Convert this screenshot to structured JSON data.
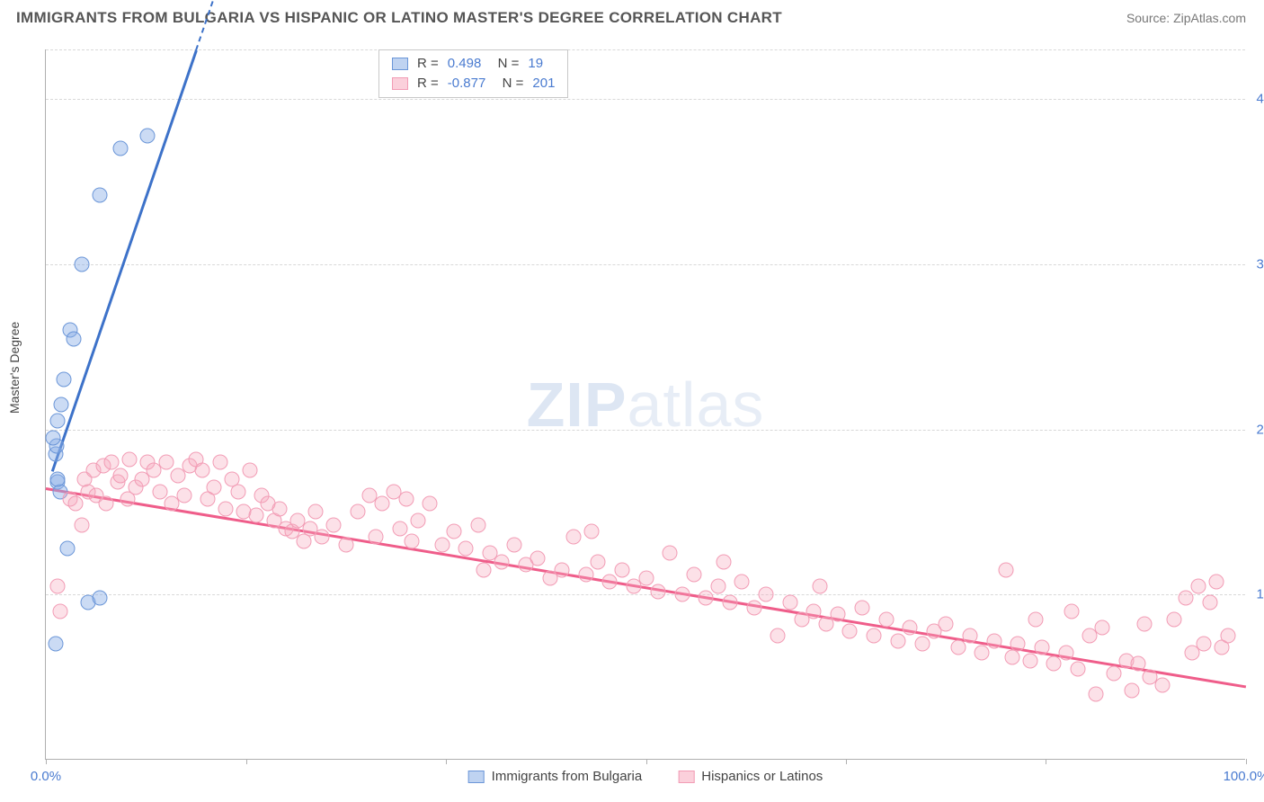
{
  "title": "IMMIGRANTS FROM BULGARIA VS HISPANIC OR LATINO MASTER'S DEGREE CORRELATION CHART",
  "source": "Source: ZipAtlas.com",
  "ylabel": "Master's Degree",
  "watermark_bold": "ZIP",
  "watermark_light": "atlas",
  "chart": {
    "type": "scatter",
    "xlim": [
      0,
      100
    ],
    "ylim": [
      0,
      43
    ],
    "xtick_labels": {
      "0": "0.0%",
      "100": "100.0%"
    },
    "xtick_positions": [
      0,
      16.67,
      33.33,
      50,
      66.67,
      83.33,
      100
    ],
    "ytick_labels": {
      "10": "10.0%",
      "20": "20.0%",
      "30": "30.0%",
      "40": "40.0%"
    },
    "grid_y": [
      10,
      20,
      30,
      40,
      43
    ],
    "grid_color": "#d8d8d8",
    "background_color": "#ffffff",
    "label_color": "#4a7bd0",
    "series": [
      {
        "name": "Immigrants from Bulgaria",
        "color_fill": "rgba(139,175,230,0.45)",
        "color_stroke": "#6b96d8",
        "R": "0.498",
        "N": "19",
        "regression": {
          "x1": 0.5,
          "y1": 17.5,
          "x2": 12.5,
          "y2": 43,
          "color": "#3d72c9",
          "dash_extend": true
        },
        "points": [
          [
            0.8,
            18.5
          ],
          [
            0.9,
            19.0
          ],
          [
            1.0,
            20.5
          ],
          [
            1.3,
            21.5
          ],
          [
            1.5,
            23.0
          ],
          [
            2.0,
            26.0
          ],
          [
            2.3,
            25.5
          ],
          [
            3.0,
            30.0
          ],
          [
            4.5,
            34.2
          ],
          [
            6.2,
            37.0
          ],
          [
            8.5,
            37.8
          ],
          [
            1.0,
            16.8
          ],
          [
            1.8,
            12.8
          ],
          [
            0.8,
            7.0
          ],
          [
            3.5,
            9.5
          ],
          [
            4.5,
            9.8
          ],
          [
            1.2,
            16.2
          ],
          [
            0.6,
            19.5
          ],
          [
            1.0,
            17.0
          ]
        ]
      },
      {
        "name": "Hispanics or Latinos",
        "color_fill": "rgba(247,170,190,0.35)",
        "color_stroke": "#f29cb5",
        "R": "-0.877",
        "N": "201",
        "regression": {
          "x1": 0,
          "y1": 16.5,
          "x2": 100,
          "y2": 4.5,
          "color": "#ef5d8a"
        },
        "points": [
          [
            1.0,
            10.5
          ],
          [
            1.2,
            9.0
          ],
          [
            2.0,
            15.8
          ],
          [
            2.5,
            15.5
          ],
          [
            3.0,
            14.2
          ],
          [
            3.2,
            17.0
          ],
          [
            3.5,
            16.2
          ],
          [
            4.0,
            17.5
          ],
          [
            4.2,
            16.0
          ],
          [
            4.8,
            17.8
          ],
          [
            5.0,
            15.5
          ],
          [
            5.5,
            18.0
          ],
          [
            6.0,
            16.8
          ],
          [
            6.2,
            17.2
          ],
          [
            6.8,
            15.8
          ],
          [
            7.0,
            18.2
          ],
          [
            7.5,
            16.5
          ],
          [
            8.0,
            17.0
          ],
          [
            8.5,
            18.0
          ],
          [
            9.0,
            17.5
          ],
          [
            9.5,
            16.2
          ],
          [
            10.0,
            18.0
          ],
          [
            10.5,
            15.5
          ],
          [
            11.0,
            17.2
          ],
          [
            11.5,
            16.0
          ],
          [
            12.0,
            17.8
          ],
          [
            12.5,
            18.2
          ],
          [
            13.0,
            17.5
          ],
          [
            13.5,
            15.8
          ],
          [
            14.0,
            16.5
          ],
          [
            14.5,
            18.0
          ],
          [
            15.0,
            15.2
          ],
          [
            15.5,
            17.0
          ],
          [
            16.0,
            16.2
          ],
          [
            16.5,
            15.0
          ],
          [
            17.0,
            17.5
          ],
          [
            17.5,
            14.8
          ],
          [
            18.0,
            16.0
          ],
          [
            18.5,
            15.5
          ],
          [
            19.0,
            14.5
          ],
          [
            19.5,
            15.2
          ],
          [
            20.0,
            14.0
          ],
          [
            20.5,
            13.8
          ],
          [
            21.0,
            14.5
          ],
          [
            21.5,
            13.2
          ],
          [
            22.0,
            14.0
          ],
          [
            22.5,
            15.0
          ],
          [
            23.0,
            13.5
          ],
          [
            24.0,
            14.2
          ],
          [
            25.0,
            13.0
          ],
          [
            26.0,
            15.0
          ],
          [
            27.0,
            16.0
          ],
          [
            27.5,
            13.5
          ],
          [
            28.0,
            15.5
          ],
          [
            29.0,
            16.2
          ],
          [
            29.5,
            14.0
          ],
          [
            30.0,
            15.8
          ],
          [
            30.5,
            13.2
          ],
          [
            31.0,
            14.5
          ],
          [
            32.0,
            15.5
          ],
          [
            33.0,
            13.0
          ],
          [
            34.0,
            13.8
          ],
          [
            35.0,
            12.8
          ],
          [
            36.0,
            14.2
          ],
          [
            36.5,
            11.5
          ],
          [
            37.0,
            12.5
          ],
          [
            38.0,
            12.0
          ],
          [
            39.0,
            13.0
          ],
          [
            40.0,
            11.8
          ],
          [
            41.0,
            12.2
          ],
          [
            42.0,
            11.0
          ],
          [
            43.0,
            11.5
          ],
          [
            44.0,
            13.5
          ],
          [
            45.0,
            11.2
          ],
          [
            45.5,
            13.8
          ],
          [
            46.0,
            12.0
          ],
          [
            47.0,
            10.8
          ],
          [
            48.0,
            11.5
          ],
          [
            49.0,
            10.5
          ],
          [
            50.0,
            11.0
          ],
          [
            51.0,
            10.2
          ],
          [
            52.0,
            12.5
          ],
          [
            53.0,
            10.0
          ],
          [
            54.0,
            11.2
          ],
          [
            55.0,
            9.8
          ],
          [
            56.0,
            10.5
          ],
          [
            56.5,
            12.0
          ],
          [
            57.0,
            9.5
          ],
          [
            58.0,
            10.8
          ],
          [
            59.0,
            9.2
          ],
          [
            60.0,
            10.0
          ],
          [
            61.0,
            7.5
          ],
          [
            62.0,
            9.5
          ],
          [
            63.0,
            8.5
          ],
          [
            64.0,
            9.0
          ],
          [
            64.5,
            10.5
          ],
          [
            65.0,
            8.2
          ],
          [
            66.0,
            8.8
          ],
          [
            67.0,
            7.8
          ],
          [
            68.0,
            9.2
          ],
          [
            69.0,
            7.5
          ],
          [
            70.0,
            8.5
          ],
          [
            71.0,
            7.2
          ],
          [
            72.0,
            8.0
          ],
          [
            73.0,
            7.0
          ],
          [
            74.0,
            7.8
          ],
          [
            75.0,
            8.2
          ],
          [
            76.0,
            6.8
          ],
          [
            77.0,
            7.5
          ],
          [
            78.0,
            6.5
          ],
          [
            79.0,
            7.2
          ],
          [
            80.0,
            11.5
          ],
          [
            80.5,
            6.2
          ],
          [
            81.0,
            7.0
          ],
          [
            82.0,
            6.0
          ],
          [
            82.5,
            8.5
          ],
          [
            83.0,
            6.8
          ],
          [
            84.0,
            5.8
          ],
          [
            85.0,
            6.5
          ],
          [
            85.5,
            9.0
          ],
          [
            86.0,
            5.5
          ],
          [
            87.0,
            7.5
          ],
          [
            87.5,
            4.0
          ],
          [
            88.0,
            8.0
          ],
          [
            89.0,
            5.2
          ],
          [
            90.0,
            6.0
          ],
          [
            90.5,
            4.2
          ],
          [
            91.0,
            5.8
          ],
          [
            91.5,
            8.2
          ],
          [
            92.0,
            5.0
          ],
          [
            93.0,
            4.5
          ],
          [
            94.0,
            8.5
          ],
          [
            95.0,
            9.8
          ],
          [
            95.5,
            6.5
          ],
          [
            96.0,
            10.5
          ],
          [
            96.5,
            7.0
          ],
          [
            97.0,
            9.5
          ],
          [
            97.5,
            10.8
          ],
          [
            98.0,
            6.8
          ],
          [
            98.5,
            7.5
          ]
        ]
      }
    ]
  }
}
